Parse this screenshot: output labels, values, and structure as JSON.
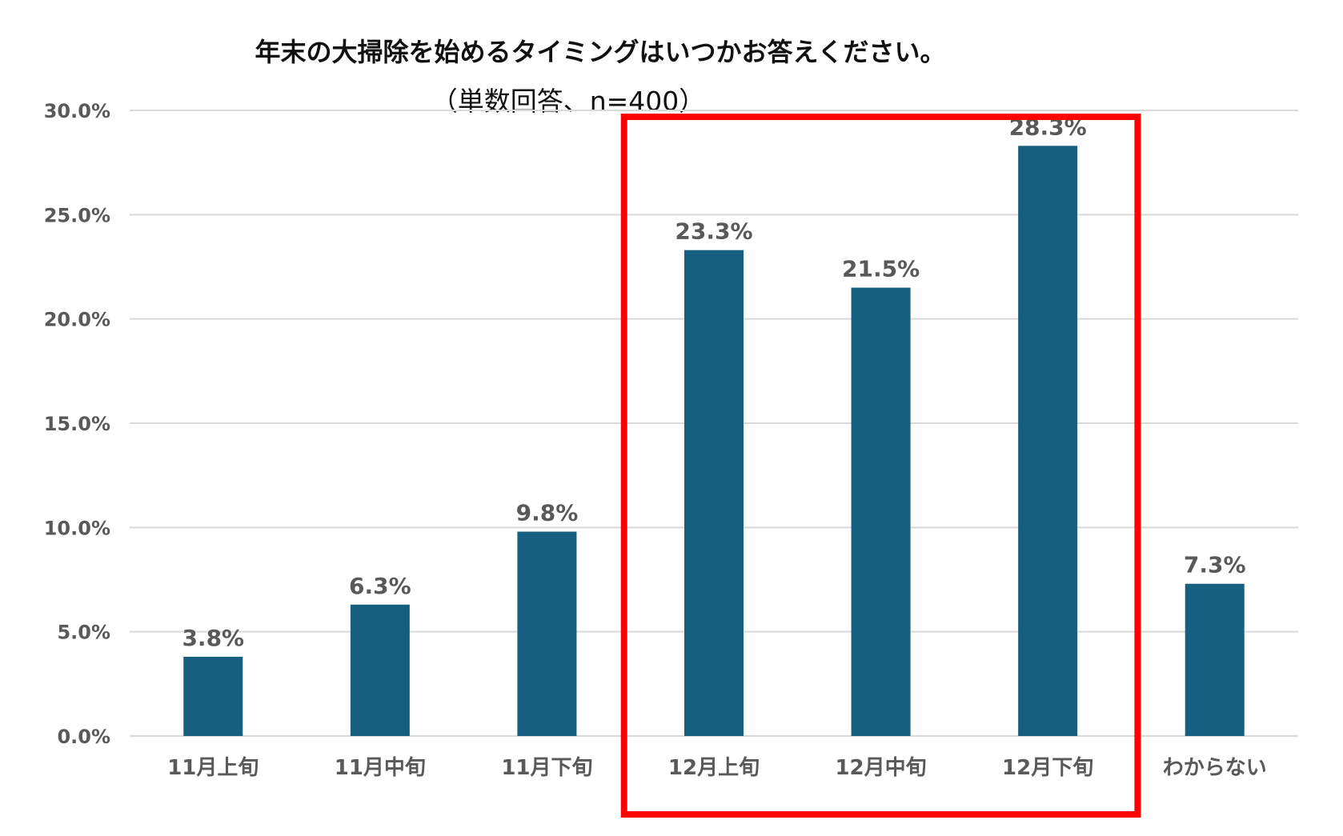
{
  "colors": {
    "bar": "#175f80",
    "grid": "#d9d9d9",
    "label": "#595959",
    "highlight": "#ff0000",
    "title": "#111111"
  },
  "chart_data": {
    "type": "bar",
    "title": "年末の大掃除を始めるタイミングはいつかお答えください。",
    "subtitle": "（単数回答、n=400）",
    "categories": [
      "11月上旬",
      "11月中旬",
      "11月下旬",
      "12月上旬",
      "12月中旬",
      "12月下旬",
      "わからない"
    ],
    "values": [
      3.8,
      6.3,
      9.8,
      23.3,
      21.5,
      28.3,
      7.3
    ],
    "data_labels": [
      "3.8%",
      "6.3%",
      "9.8%",
      "23.3%",
      "21.5%",
      "28.3%",
      "7.3%"
    ],
    "yticks": [
      0,
      5,
      10,
      15,
      20,
      25,
      30
    ],
    "ytick_labels": [
      "0.0%",
      "5.0%",
      "10.0%",
      "15.0%",
      "20.0%",
      "25.0%",
      "30.0%"
    ],
    "ylim": [
      0,
      30
    ],
    "xlabel": "",
    "ylabel": "",
    "grid": true,
    "highlight_categories": [
      "12月上旬",
      "12月中旬",
      "12月下旬"
    ]
  }
}
